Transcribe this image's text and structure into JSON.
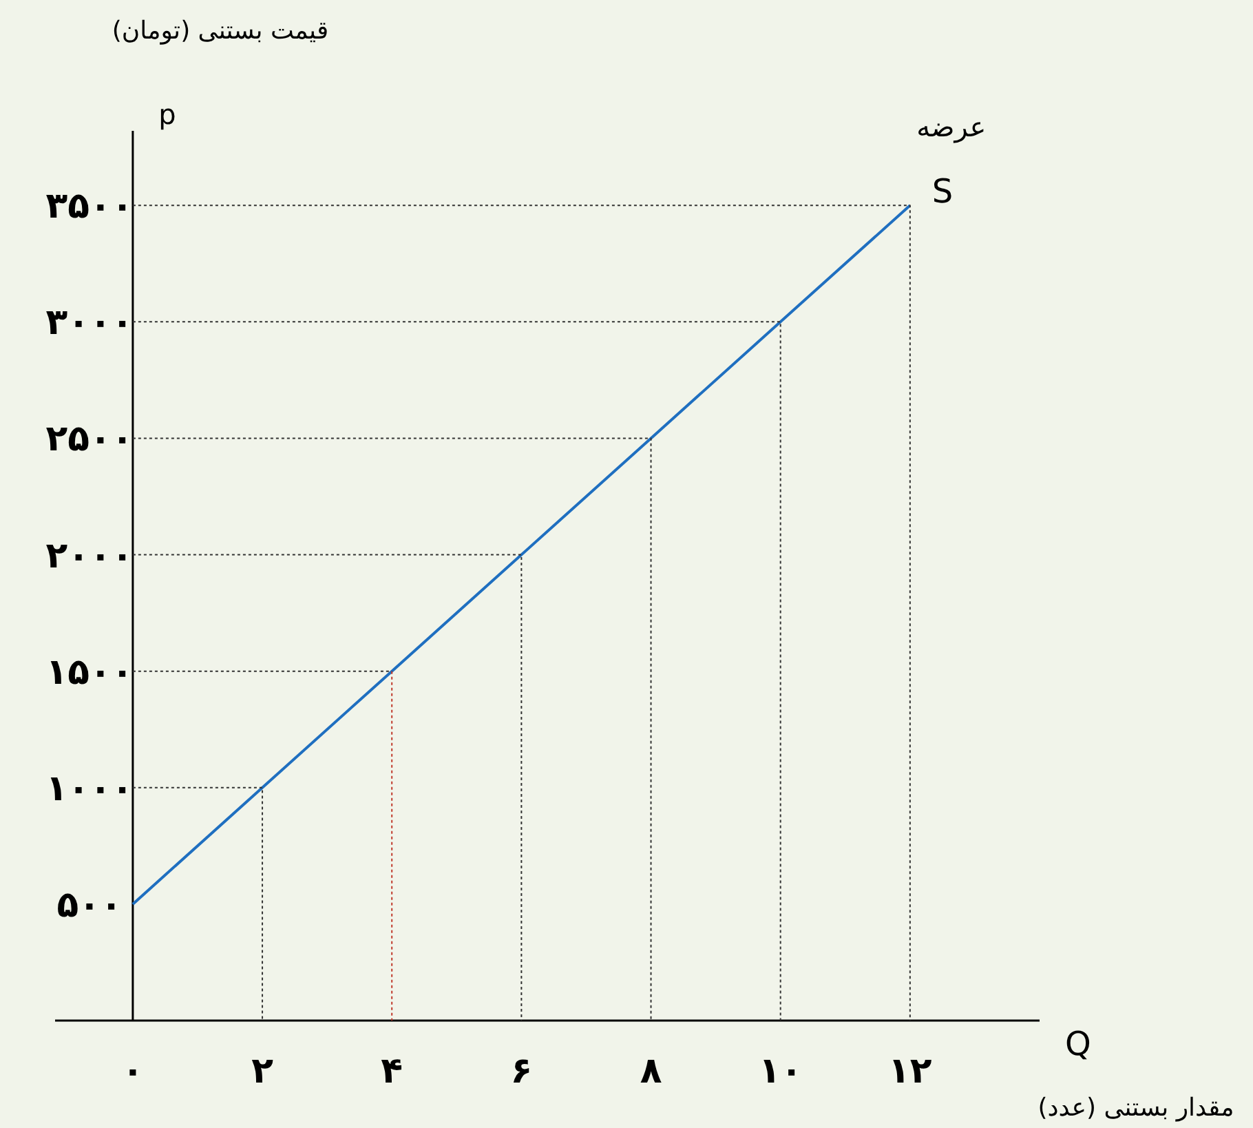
{
  "chart_data": {
    "type": "line",
    "xlabel": "Q",
    "ylabel": "p",
    "x": [
      0,
      2,
      4,
      6,
      8,
      10,
      12
    ],
    "series": [
      {
        "name": "S",
        "color": "#1f6fc0",
        "values": [
          500,
          1000,
          1500,
          2000,
          2500,
          3000,
          3500
        ]
      },
      {
        "color": "#333333",
        "line_style": "dotted",
        "x": [
          0,
          2,
          2
        ],
        "values": [
          1000,
          1000,
          0
        ]
      },
      {
        "color": "#333333",
        "line_style": "dotted",
        "x": [
          0,
          4
        ],
        "values": [
          1500,
          1500
        ]
      },
      {
        "color": "#c0392b",
        "line_style": "dotted",
        "x": [
          4,
          4
        ],
        "values": [
          1500,
          0
        ]
      },
      {
        "color": "#333333",
        "line_style": "dotted",
        "x": [
          0,
          6,
          6
        ],
        "values": [
          2000,
          2000,
          0
        ]
      },
      {
        "color": "#333333",
        "line_style": "dotted",
        "x": [
          0,
          8,
          8
        ],
        "values": [
          2500,
          2500,
          0
        ]
      },
      {
        "color": "#333333",
        "line_style": "dotted",
        "x": [
          0,
          10,
          10
        ],
        "values": [
          3000,
          3000,
          0
        ]
      },
      {
        "color": "#333333",
        "line_style": "dotted",
        "x": [
          0,
          12,
          12
        ],
        "values": [
          3500,
          3500,
          0
        ]
      }
    ],
    "xlim": [
      -1.2,
      14
    ],
    "ylim": [
      0,
      3820
    ],
    "xticks": [
      {
        "value": 0,
        "label": "۰"
      },
      {
        "value": 2,
        "label": "۲"
      },
      {
        "value": 4,
        "label": "۴"
      },
      {
        "value": 6,
        "label": "۶"
      },
      {
        "value": 8,
        "label": "۸"
      },
      {
        "value": 10,
        "label": "۱۰"
      },
      {
        "value": 12,
        "label": "۱۲"
      }
    ],
    "yticks": [
      {
        "value": 500,
        "label": "۵۰۰"
      },
      {
        "value": 1000,
        "label": "۱۰۰۰"
      },
      {
        "value": 1500,
        "label": "۱۵۰۰"
      },
      {
        "value": 2000,
        "label": "۲۰۰۰"
      },
      {
        "value": 2500,
        "label": "۲۵۰۰"
      },
      {
        "value": 3000,
        "label": "۳۰۰۰"
      },
      {
        "value": 3500,
        "label": "۳۵۰۰"
      }
    ],
    "annotations": [
      "قیمت بستنی (تومان)",
      "مقدار بستنی (عدد)",
      {
        "text": "عرضه",
        "x": 12,
        "y": 3500
      }
    ],
    "legend": false
  }
}
